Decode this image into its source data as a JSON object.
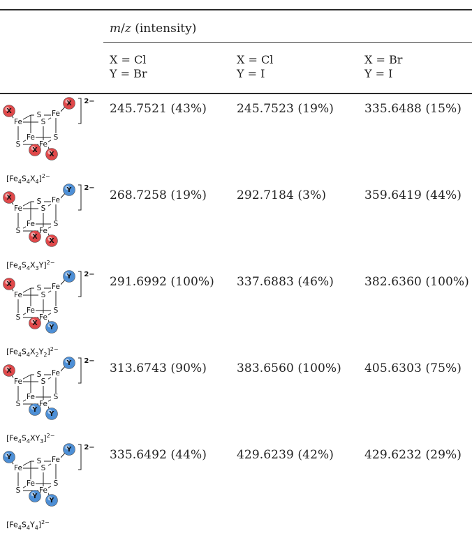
{
  "header": {
    "group_label_italic_m": "m",
    "group_label_slash": "/",
    "group_label_italic_z": "z",
    "group_label_rest": " (intensity)",
    "columns": [
      {
        "line1": "X = Cl",
        "line2": "Y = Br"
      },
      {
        "line1": "X = Cl",
        "line2": "Y = I"
      },
      {
        "line1": "X = Br",
        "line2": "Y = I"
      }
    ]
  },
  "rows": [
    {
      "formula": "[Fe4S4X4]2−",
      "formula_parts": [
        "[Fe",
        "4",
        "S",
        "4",
        "X",
        "4",
        "]",
        "2−"
      ],
      "ligands": [
        "X",
        "X",
        "X",
        "X"
      ],
      "charge": "2−",
      "values": [
        "245.7521 (43%)",
        "245.7523 (19%)",
        "335.6488 (15%)"
      ]
    },
    {
      "formula": "[Fe4S4X3Y]2−",
      "formula_parts": [
        "[Fe",
        "4",
        "S",
        "4",
        "X",
        "3",
        "Y]",
        "2−"
      ],
      "ligands": [
        "X",
        "Y",
        "X",
        "X"
      ],
      "charge": "2−",
      "values": [
        "268.7258 (19%)",
        "292.7184 (3%)",
        "359.6419 (44%)"
      ]
    },
    {
      "formula": "[Fe4S4X2Y2]2−",
      "formula_parts": [
        "[Fe",
        "4",
        "S",
        "4",
        "X",
        "2",
        "Y",
        "2",
        "]",
        "2−"
      ],
      "ligands": [
        "X",
        "Y",
        "X",
        "Y"
      ],
      "charge": "2−",
      "values": [
        "291.6992 (100%)",
        "337.6883 (46%)",
        "382.6360 (100%)"
      ]
    },
    {
      "formula": "[Fe4S4XY3]2−",
      "formula_parts": [
        "[Fe",
        "4",
        "S",
        "4",
        "XY",
        "3",
        "]",
        "2−"
      ],
      "ligands": [
        "X",
        "Y",
        "Y",
        "Y"
      ],
      "charge": "2−",
      "values": [
        "313.6743 (90%)",
        "383.6560 (100%)",
        "405.6303 (75%)"
      ]
    },
    {
      "formula": "[Fe4S4Y4]2−",
      "formula_parts": [
        "[Fe",
        "4",
        "S",
        "4",
        "Y",
        "4",
        "]",
        "2−"
      ],
      "ligands": [
        "Y",
        "Y",
        "Y",
        "Y"
      ],
      "charge": "2−",
      "values": [
        "335.6492 (44%)",
        "429.6239 (42%)",
        "429.6232 (29%)"
      ]
    }
  ],
  "atom_labels": {
    "fe": "Fe",
    "s": "S"
  },
  "colors": {
    "x_ligand": "#e0484a",
    "y_ligand": "#4d8fd6",
    "rule": "#2a2a2a",
    "text": "#222222"
  }
}
